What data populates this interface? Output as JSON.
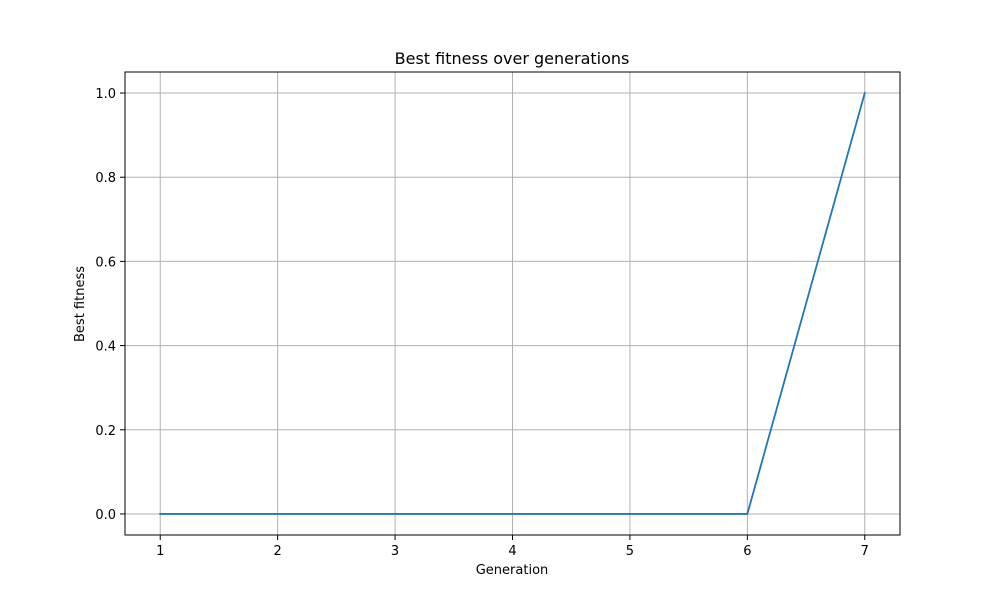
{
  "chart_data": {
    "type": "line",
    "title": "Best fitness over generations",
    "xlabel": "Generation",
    "ylabel": "Best fitness",
    "x": [
      1,
      2,
      3,
      4,
      5,
      6,
      7
    ],
    "series": [
      {
        "values": [
          0.0,
          0.0,
          0.0,
          0.0,
          0.0,
          0.0,
          1.0
        ],
        "color": "#1f77b4"
      }
    ],
    "xlim": [
      0.7,
      7.3
    ],
    "ylim": [
      -0.05,
      1.05
    ],
    "xticks": [
      1,
      2,
      3,
      4,
      5,
      6,
      7
    ],
    "xtick_labels": [
      "1",
      "2",
      "3",
      "4",
      "5",
      "6",
      "7"
    ],
    "yticks": [
      0.0,
      0.2,
      0.4,
      0.6,
      0.8,
      1.0
    ],
    "ytick_labels": [
      "0.0",
      "0.2",
      "0.4",
      "0.6",
      "0.8",
      "1.0"
    ],
    "grid": true,
    "grid_color": "#b0b0b0",
    "legend": "none"
  }
}
